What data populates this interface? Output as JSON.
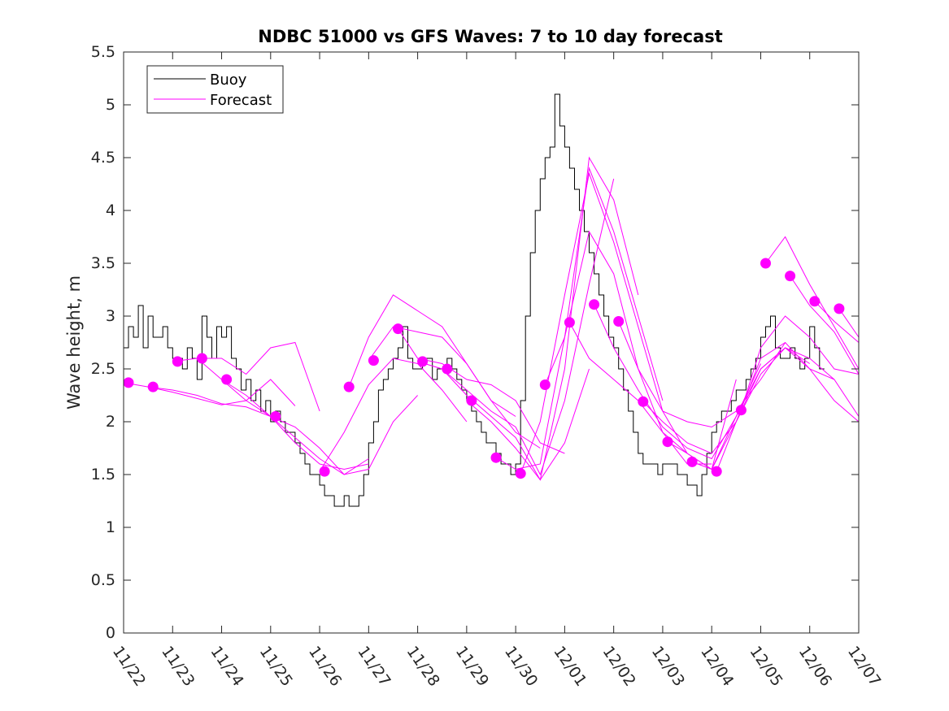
{
  "chart_data": {
    "type": "line",
    "title": "NDBC 51000 vs GFS Waves: 7 to 10 day forecast",
    "xlabel": "",
    "ylabel": "Wave height, m",
    "xlim": [
      0,
      15
    ],
    "ylim": [
      0,
      5.5
    ],
    "x_ticks": [
      0,
      1,
      2,
      3,
      4,
      5,
      6,
      7,
      8,
      9,
      10,
      11,
      12,
      13,
      14,
      15
    ],
    "x_tick_labels": [
      "11/22",
      "11/23",
      "11/24",
      "11/25",
      "11/26",
      "11/27",
      "11/28",
      "11/29",
      "11/30",
      "12/01",
      "12/02",
      "12/03",
      "12/04",
      "12/05",
      "12/06",
      "12/07"
    ],
    "y_ticks": [
      0,
      0.5,
      1,
      1.5,
      2,
      2.5,
      3,
      3.5,
      4,
      4.5,
      5,
      5.5
    ],
    "y_tick_labels": [
      "0",
      "0.5",
      "1",
      "1.5",
      "2",
      "2.5",
      "3",
      "3.5",
      "4",
      "4.5",
      "5",
      "5.5"
    ],
    "grid": false,
    "legend": {
      "position": "top-left",
      "entries": [
        "Buoy",
        "Forecast"
      ]
    },
    "colors": {
      "buoy": "#000000",
      "forecast": "#ff00ff"
    },
    "buoy_series": {
      "name": "Buoy",
      "x": [
        0,
        0.1,
        0.2,
        0.3,
        0.4,
        0.5,
        0.6,
        0.7,
        0.8,
        0.9,
        1.0,
        1.1,
        1.2,
        1.3,
        1.4,
        1.5,
        1.6,
        1.7,
        1.8,
        1.9,
        2.0,
        2.1,
        2.2,
        2.3,
        2.4,
        2.5,
        2.6,
        2.7,
        2.8,
        2.9,
        3.0,
        3.1,
        3.2,
        3.3,
        3.4,
        3.5,
        3.6,
        3.7,
        3.8,
        3.9,
        4.0,
        4.1,
        4.2,
        4.3,
        4.4,
        4.5,
        4.6,
        4.7,
        4.8,
        4.9,
        5.0,
        5.1,
        5.2,
        5.3,
        5.4,
        5.5,
        5.6,
        5.7,
        5.8,
        5.9,
        6.0,
        6.1,
        6.2,
        6.3,
        6.4,
        6.5,
        6.6,
        6.7,
        6.8,
        6.9,
        7.0,
        7.1,
        7.2,
        7.3,
        7.4,
        7.5,
        7.6,
        7.7,
        7.8,
        7.9,
        8.0,
        8.1,
        8.2,
        8.3,
        8.4,
        8.5,
        8.6,
        8.7,
        8.8,
        8.9,
        9.0,
        9.1,
        9.2,
        9.3,
        9.4,
        9.5,
        9.6,
        9.7,
        9.8,
        9.9,
        10.0,
        10.1,
        10.2,
        10.3,
        10.4,
        10.5,
        10.6,
        10.7,
        10.8,
        10.9,
        11.0,
        11.1,
        11.2,
        11.3,
        11.4,
        11.5,
        11.6,
        11.7,
        11.8,
        11.9,
        12.0,
        12.1,
        12.2,
        12.3,
        12.4,
        12.5,
        12.6,
        12.7,
        12.8,
        12.9,
        13.0,
        13.1,
        13.2,
        13.3,
        13.4,
        13.5,
        13.6,
        13.7,
        13.8,
        13.9,
        14.0,
        14.1,
        14.2,
        14.3
      ],
      "values": [
        2.7,
        2.9,
        2.8,
        3.1,
        2.7,
        3.0,
        2.8,
        2.8,
        2.9,
        2.7,
        2.6,
        2.6,
        2.5,
        2.7,
        2.6,
        2.4,
        3.0,
        2.8,
        2.6,
        2.9,
        2.8,
        2.9,
        2.6,
        2.5,
        2.3,
        2.4,
        2.2,
        2.3,
        2.1,
        2.2,
        2.0,
        2.1,
        2.0,
        1.9,
        1.9,
        1.8,
        1.7,
        1.6,
        1.5,
        1.5,
        1.4,
        1.3,
        1.3,
        1.2,
        1.2,
        1.3,
        1.2,
        1.2,
        1.3,
        1.5,
        1.8,
        2.0,
        2.3,
        2.4,
        2.5,
        2.6,
        2.7,
        2.9,
        2.6,
        2.5,
        2.5,
        2.6,
        2.6,
        2.4,
        2.5,
        2.5,
        2.6,
        2.5,
        2.4,
        2.3,
        2.2,
        2.1,
        2.0,
        1.9,
        1.8,
        1.8,
        1.7,
        1.6,
        1.6,
        1.5,
        1.6,
        2.2,
        3.0,
        3.6,
        4.0,
        4.3,
        4.5,
        4.6,
        5.1,
        4.8,
        4.6,
        4.4,
        4.2,
        4.0,
        3.8,
        3.6,
        3.4,
        3.2,
        3.0,
        2.8,
        2.7,
        2.5,
        2.3,
        2.1,
        1.9,
        1.7,
        1.6,
        1.6,
        1.6,
        1.5,
        1.6,
        1.6,
        1.6,
        1.5,
        1.5,
        1.4,
        1.4,
        1.3,
        1.5,
        1.7,
        1.9,
        2.0,
        2.1,
        2.1,
        2.2,
        2.3,
        2.3,
        2.4,
        2.5,
        2.6,
        2.8,
        2.9,
        3.0,
        2.7,
        2.6,
        2.6,
        2.7,
        2.6,
        2.5,
        2.6,
        2.9,
        2.7,
        2.5,
        2.5
      ]
    },
    "forecast_series": [
      {
        "name": "Forecast",
        "x": [
          0,
          0.5,
          1.0,
          1.5,
          2.0,
          2.5,
          3.0
        ],
        "values": [
          2.37,
          2.33,
          2.3,
          2.25,
          2.17,
          2.14,
          2.05
        ]
      },
      {
        "name": "Forecast",
        "x": [
          0.5,
          1.0,
          1.5,
          2.0,
          2.5,
          3.0,
          3.5
        ],
        "values": [
          2.33,
          2.28,
          2.22,
          2.16,
          2.2,
          2.4,
          2.15
        ]
      },
      {
        "name": "Forecast",
        "x": [
          1.0,
          1.5,
          2.0,
          2.5,
          3.0,
          3.5,
          4.0
        ],
        "values": [
          2.57,
          2.6,
          2.6,
          2.45,
          2.7,
          2.75,
          2.1
        ]
      },
      {
        "name": "Forecast",
        "x": [
          1.5,
          2.0,
          2.5,
          3.0,
          3.5,
          4.0,
          4.5,
          5.0
        ],
        "values": [
          2.6,
          2.4,
          2.2,
          2.05,
          1.85,
          1.65,
          1.5,
          1.65
        ]
      },
      {
        "name": "Forecast",
        "x": [
          2.0,
          2.5,
          3.0,
          3.5,
          4.0,
          4.5,
          5.0
        ],
        "values": [
          2.4,
          2.25,
          2.05,
          1.8,
          1.6,
          1.55,
          1.6
        ]
      },
      {
        "name": "Forecast",
        "x": [
          3.0,
          3.5,
          4.0,
          4.5,
          5.0,
          5.5,
          6.0
        ],
        "values": [
          2.05,
          1.95,
          1.75,
          1.5,
          1.55,
          2.0,
          2.25
        ]
      },
      {
        "name": "Forecast",
        "x": [
          4.0,
          4.5,
          5.0,
          5.5,
          6.0,
          6.5,
          7.0
        ],
        "values": [
          1.53,
          1.9,
          2.35,
          2.6,
          2.55,
          2.3,
          2.0
        ]
      },
      {
        "name": "Forecast",
        "x": [
          4.6,
          5.0,
          5.5,
          6.0,
          6.5,
          7.0,
          7.5,
          8.0
        ],
        "values": [
          2.33,
          2.8,
          3.2,
          3.05,
          2.9,
          2.55,
          2.2,
          2.05
        ]
      },
      {
        "name": "Forecast",
        "x": [
          5.0,
          5.5,
          6.0,
          6.5,
          7.0,
          7.5,
          8.0,
          8.5
        ],
        "values": [
          2.58,
          2.9,
          2.85,
          2.8,
          2.55,
          2.2,
          1.9,
          1.75
        ]
      },
      {
        "name": "Forecast",
        "x": [
          5.6,
          6.0,
          6.5,
          7.0,
          7.5,
          8.0,
          8.5,
          9.0
        ],
        "values": [
          2.88,
          2.6,
          2.55,
          2.4,
          2.35,
          2.2,
          1.8,
          1.7
        ]
      },
      {
        "name": "Forecast",
        "x": [
          6.0,
          6.5,
          7.0,
          7.5,
          8.0,
          8.5,
          9.0,
          9.5
        ],
        "values": [
          2.57,
          2.5,
          2.25,
          2.05,
          1.85,
          1.45,
          1.8,
          2.5
        ]
      },
      {
        "name": "Forecast",
        "x": [
          6.5,
          7.0,
          7.5,
          8.0,
          8.5,
          9.0,
          9.5,
          10.0
        ],
        "values": [
          2.5,
          2.3,
          2.1,
          1.95,
          1.5,
          2.2,
          3.3,
          4.3
        ]
      },
      {
        "name": "Forecast",
        "x": [
          7.0,
          7.5,
          8.0,
          8.5,
          9.0,
          9.5,
          10.0,
          10.5
        ],
        "values": [
          2.2,
          2.0,
          1.75,
          1.45,
          2.5,
          4.5,
          4.1,
          3.2
        ]
      },
      {
        "name": "Forecast",
        "x": [
          7.6,
          8.0,
          8.5,
          9.0,
          9.5,
          10.0,
          10.5,
          11.0
        ],
        "values": [
          1.66,
          1.55,
          1.6,
          2.8,
          4.4,
          3.8,
          3.0,
          2.2
        ]
      },
      {
        "name": "Forecast",
        "x": [
          8.1,
          8.5,
          9.0,
          9.5,
          10.0,
          10.5,
          11.0,
          11.5
        ],
        "values": [
          1.51,
          2.0,
          3.2,
          4.35,
          3.7,
          2.9,
          2.1,
          1.7
        ]
      },
      {
        "name": "Forecast",
        "x": [
          8.6,
          9.0,
          9.5,
          10.0,
          10.5,
          11.0,
          11.5,
          12.0
        ],
        "values": [
          2.35,
          2.8,
          3.8,
          3.4,
          2.5,
          1.9,
          1.6,
          1.6
        ]
      },
      {
        "name": "Forecast",
        "x": [
          9.1,
          9.5,
          10.0,
          10.5,
          11.0,
          11.5,
          12.0,
          12.5
        ],
        "values": [
          2.94,
          2.6,
          2.4,
          2.2,
          1.9,
          1.7,
          1.55,
          2.4
        ]
      },
      {
        "name": "Forecast",
        "x": [
          9.6,
          10.0,
          10.5,
          11.0,
          11.5,
          12.0,
          12.5,
          13.0
        ],
        "values": [
          3.11,
          2.7,
          2.3,
          1.95,
          1.75,
          1.65,
          2.05,
          2.55
        ]
      },
      {
        "name": "Forecast",
        "x": [
          10.1,
          10.5,
          11.0,
          11.5,
          12.0,
          12.5,
          13.0,
          13.5
        ],
        "values": [
          2.95,
          2.5,
          2.1,
          2.0,
          1.95,
          2.1,
          2.4,
          2.75
        ]
      },
      {
        "name": "Forecast",
        "x": [
          10.6,
          11.0,
          11.5,
          12.0,
          12.5,
          13.0,
          13.5,
          14.0
        ],
        "values": [
          2.19,
          2.0,
          1.8,
          1.7,
          2.0,
          2.45,
          2.7,
          2.55
        ]
      },
      {
        "name": "Forecast",
        "x": [
          11.1,
          11.5,
          12.0,
          12.5,
          13.0,
          13.5,
          14.0,
          14.5
        ],
        "values": [
          1.81,
          1.7,
          1.55,
          2.0,
          2.6,
          2.75,
          2.5,
          2.4
        ]
      },
      {
        "name": "Forecast",
        "x": [
          11.6,
          12.0,
          12.5,
          13.0,
          13.5,
          14.0,
          14.5,
          15.0
        ],
        "values": [
          1.62,
          1.55,
          2.05,
          2.5,
          2.7,
          2.6,
          2.4,
          2.05
        ]
      },
      {
        "name": "Forecast",
        "x": [
          12.1,
          12.5,
          13.0,
          13.5,
          14.0,
          14.5,
          15.0
        ],
        "values": [
          1.53,
          2.0,
          2.5,
          2.7,
          2.5,
          2.2,
          2.0
        ]
      },
      {
        "name": "Forecast",
        "x": [
          12.6,
          13.0,
          13.5,
          14.0,
          14.5,
          15.0
        ],
        "values": [
          2.11,
          2.7,
          3.0,
          2.8,
          2.5,
          2.45
        ]
      },
      {
        "name": "Forecast",
        "x": [
          13.1,
          13.5,
          14.0,
          14.5,
          15.0
        ],
        "values": [
          3.5,
          3.75,
          3.3,
          2.9,
          2.5
        ]
      },
      {
        "name": "Forecast",
        "x": [
          13.6,
          14.0,
          14.5,
          15.0
        ],
        "values": [
          3.38,
          3.1,
          2.85,
          2.45
        ]
      },
      {
        "name": "Forecast",
        "x": [
          14.1,
          14.5,
          15.0
        ],
        "values": [
          3.14,
          2.95,
          2.75
        ]
      },
      {
        "name": "Forecast",
        "x": [
          14.6,
          15.0
        ],
        "values": [
          3.07,
          2.8
        ]
      }
    ],
    "forecast_markers": {
      "x": [
        0.1,
        0.6,
        1.1,
        1.6,
        2.1,
        3.1,
        4.1,
        4.6,
        5.1,
        5.6,
        6.1,
        6.6,
        7.1,
        7.6,
        8.1,
        8.6,
        9.1,
        9.6,
        10.1,
        10.6,
        11.1,
        11.6,
        12.1,
        12.6,
        13.1,
        13.6,
        14.1,
        14.6
      ],
      "values": [
        2.37,
        2.33,
        2.57,
        2.6,
        2.4,
        2.05,
        1.53,
        2.33,
        2.58,
        2.88,
        2.57,
        2.5,
        2.2,
        1.66,
        1.51,
        2.35,
        2.94,
        3.11,
        2.95,
        2.19,
        1.81,
        1.62,
        1.53,
        2.11,
        3.5,
        3.38,
        3.14,
        3.07
      ]
    }
  }
}
